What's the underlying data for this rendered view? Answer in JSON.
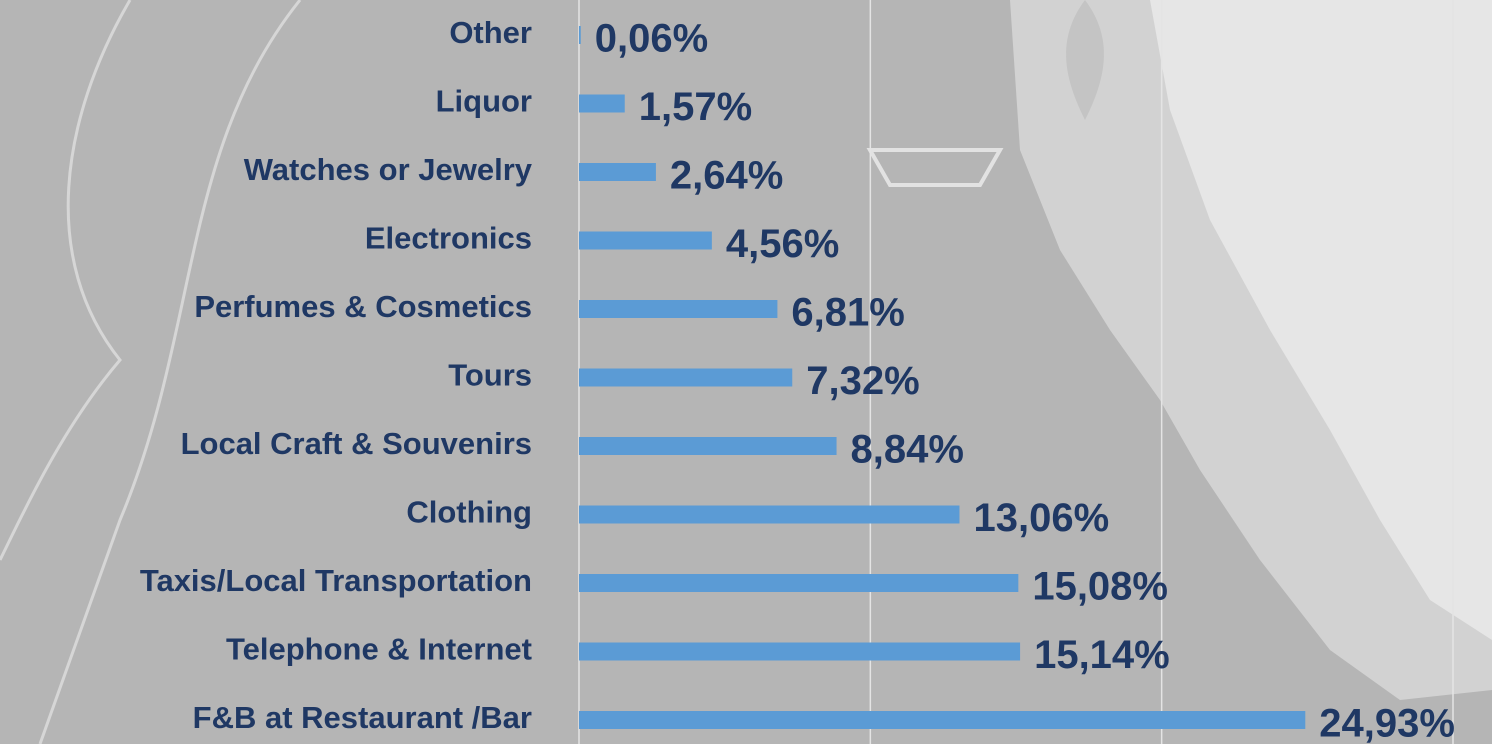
{
  "chart_data": {
    "type": "bar",
    "orientation": "horizontal",
    "categories": [
      "Other",
      "Liquor",
      "Watches or Jewelry",
      "Electronics",
      "Perfumes & Cosmetics",
      "Tours",
      "Local Craft & Souvenirs",
      "Clothing",
      "Taxis/Local Transportation",
      "Telephone & Internet",
      "F&B at Restaurant /Bar"
    ],
    "values": [
      0.06,
      1.57,
      2.64,
      4.56,
      6.81,
      7.32,
      8.84,
      13.06,
      15.08,
      15.14,
      24.93
    ],
    "value_labels": [
      "0,06%",
      "1,57%",
      "2,64%",
      "4,56%",
      "6,81%",
      "7,32%",
      "8,84%",
      "13,06%",
      "15,08%",
      "15,14%",
      "24,93%"
    ],
    "color": "#5b9bd5",
    "xlim": [
      0,
      30
    ],
    "xticks": [
      0,
      10,
      20,
      30
    ],
    "grid": true
  }
}
